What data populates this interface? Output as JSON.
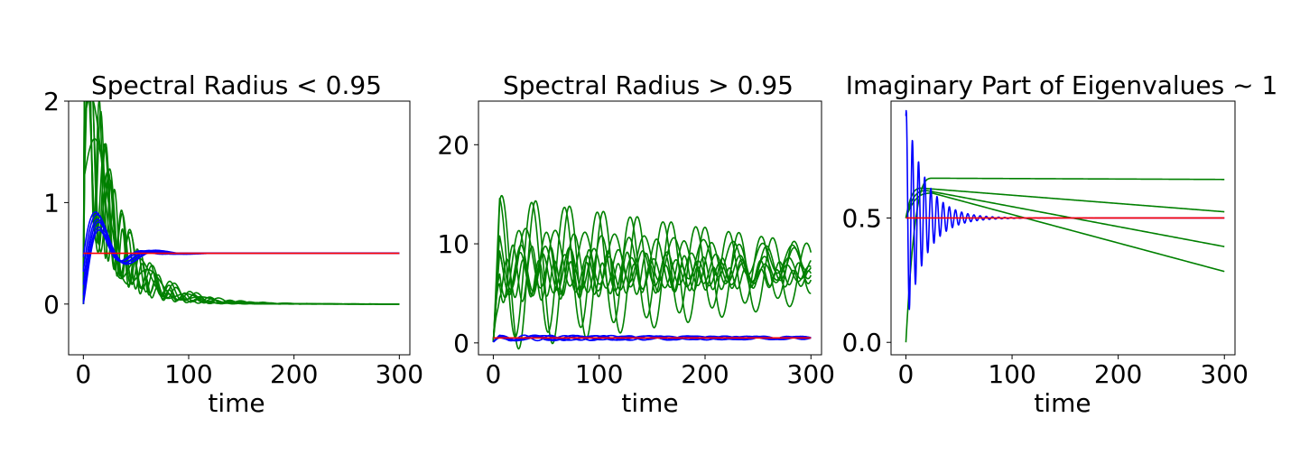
{
  "colors": {
    "transient": "#008000",
    "converging": "#0000ff",
    "reference": "#ff0000"
  },
  "chart_data": [
    {
      "type": "line",
      "title": "Spectral Radius < 0.95",
      "xlabel": "time",
      "ylabel": "",
      "xlim": [
        -14,
        310
      ],
      "ylim": [
        -0.5,
        2.0
      ],
      "xticks": [
        0,
        100,
        200,
        300
      ],
      "yticks": [
        0,
        1,
        2
      ],
      "xtick_labels": [
        "0",
        "100",
        "200",
        "300"
      ],
      "ytick_labels": [
        "0",
        "1",
        "2"
      ],
      "grid": false,
      "x_end": 300,
      "groups": [
        {
          "color": "green",
          "model": "damped_decay",
          "target": 0.0,
          "lines": [
            {
              "amplitude": 2.6,
              "decay": 22,
              "period": 11,
              "phase": 0.6,
              "start": 0
            },
            {
              "amplitude": 2.4,
              "decay": 25,
              "period": 13,
              "phase": 1.2,
              "start": 0
            },
            {
              "amplitude": 2.2,
              "decay": 28,
              "period": 15,
              "phase": 0.3,
              "start": 0
            },
            {
              "amplitude": 2.0,
              "decay": 30,
              "period": 17,
              "phase": 1.8,
              "start": 0
            },
            {
              "amplitude": 1.9,
              "decay": 32,
              "period": 19,
              "phase": 0.9,
              "start": 0
            },
            {
              "amplitude": 1.7,
              "decay": 34,
              "period": 21,
              "phase": 2.2,
              "start": 0
            },
            {
              "amplitude": 1.8,
              "decay": 30,
              "period": 45,
              "phase": 1.5,
              "start": 0
            },
            {
              "amplitude": 1.6,
              "decay": 32,
              "period": 50,
              "phase": 1.1,
              "start": 0
            }
          ]
        },
        {
          "color": "blue",
          "model": "damped_approach",
          "target": 0.5,
          "lines": [
            {
              "amplitude": 0.5,
              "decay": 18,
              "period": 40,
              "phase": 0.0,
              "delay": 0
            },
            {
              "amplitude": 0.5,
              "decay": 18,
              "period": 44,
              "phase": 0.3,
              "delay": 0
            },
            {
              "amplitude": 0.5,
              "decay": 20,
              "period": 48,
              "phase": 0.6,
              "delay": 0
            },
            {
              "amplitude": 0.5,
              "decay": 20,
              "period": 52,
              "phase": 0.9,
              "delay": 0
            },
            {
              "amplitude": 0.5,
              "decay": 22,
              "period": 56,
              "phase": 1.2,
              "delay": 0
            },
            {
              "amplitude": 0.5,
              "decay": 22,
              "period": 60,
              "phase": 1.5,
              "delay": 0
            }
          ]
        },
        {
          "color": "red",
          "model": "constant",
          "lines": [
            {
              "value": 0.5
            }
          ]
        }
      ]
    },
    {
      "type": "line",
      "title": "Spectral Radius > 0.95",
      "xlabel": "time",
      "ylabel": "",
      "xlim": [
        -14,
        310
      ],
      "ylim": [
        -1.2,
        24.4
      ],
      "xticks": [
        0,
        100,
        200,
        300
      ],
      "yticks": [
        0,
        10,
        20
      ],
      "xtick_labels": [
        "0",
        "100",
        "200",
        "300"
      ],
      "ytick_labels": [
        "0",
        "10",
        "20"
      ],
      "grid": false,
      "x_end": 300,
      "groups": [
        {
          "color": "green",
          "model": "persistent_oscillation",
          "lines": [
            {
              "mean": 7.0,
              "amplitude": 16.0,
              "final_amplitude": 6.0,
              "period": 32,
              "phase": 0.0
            },
            {
              "mean": 7.5,
              "amplitude": 14.5,
              "final_amplitude": 5.0,
              "period": 31,
              "phase": 0.5
            },
            {
              "mean": 8.5,
              "amplitude": 6.5,
              "final_amplitude": 2.5,
              "period": 28,
              "phase": 1.0
            },
            {
              "mean": 8.0,
              "amplitude": 7.0,
              "final_amplitude": 3.0,
              "period": 26,
              "phase": 2.0
            },
            {
              "mean": 7.5,
              "amplitude": 5.0,
              "final_amplitude": 2.0,
              "period": 23,
              "phase": 0.7
            },
            {
              "mean": 7.0,
              "amplitude": 6.0,
              "final_amplitude": 2.0,
              "period": 18,
              "phase": 1.4
            },
            {
              "mean": 6.5,
              "amplitude": 4.0,
              "final_amplitude": 1.5,
              "period": 15,
              "phase": 2.4
            },
            {
              "mean": 7.0,
              "amplitude": 4.5,
              "final_amplitude": 1.5,
              "period": 21,
              "phase": 0.2
            }
          ]
        },
        {
          "color": "blue",
          "model": "persistent_oscillation",
          "lines": [
            {
              "mean": 0.5,
              "amplitude": 0.5,
              "final_amplitude": 0.3,
              "period": 30,
              "phase": 0.0
            },
            {
              "mean": 0.5,
              "amplitude": 0.6,
              "final_amplitude": 0.3,
              "period": 36,
              "phase": 1.0
            },
            {
              "mean": 0.5,
              "amplitude": 0.4,
              "final_amplitude": 0.3,
              "period": 42,
              "phase": 2.0
            },
            {
              "mean": 0.5,
              "amplitude": 0.6,
              "final_amplitude": 0.2,
              "period": 25,
              "phase": 0.5
            },
            {
              "mean": 0.5,
              "amplitude": 0.5,
              "final_amplitude": 0.3,
              "period": 48,
              "phase": 1.6
            }
          ]
        },
        {
          "color": "red",
          "model": "constant",
          "lines": [
            {
              "value": 0.5
            }
          ]
        }
      ]
    },
    {
      "type": "line",
      "title": "Imaginary Part of Eigenvalues ~ 1",
      "xlabel": "time",
      "ylabel": "",
      "xlim": [
        -14,
        310
      ],
      "ylim": [
        -0.05,
        0.97
      ],
      "xticks": [
        0,
        100,
        200,
        300
      ],
      "yticks": [
        0.0,
        0.5
      ],
      "xtick_labels": [
        "0",
        "100",
        "200",
        "300"
      ],
      "ytick_labels": [
        "0.0",
        "0.5"
      ],
      "grid": false,
      "x_end": 300,
      "groups": [
        {
          "color": "green",
          "model": "rise_then_linear",
          "lines": [
            {
              "start_value": 0.0,
              "peak": 0.66,
              "peak_time": 25,
              "end_value": 0.655
            },
            {
              "start_value": 0.5,
              "peak": 0.62,
              "peak_time": 15,
              "end_value": 0.525
            },
            {
              "start_value": 0.5,
              "peak": 0.61,
              "peak_time": 20,
              "end_value": 0.385
            },
            {
              "start_value": 0.5,
              "peak": 0.6,
              "peak_time": 25,
              "end_value": 0.285
            }
          ]
        },
        {
          "color": "blue",
          "model": "damped_oscillation",
          "lines": [
            {
              "mean": 0.5,
              "amplitude": 0.44,
              "decay": 18,
              "period": 5.8,
              "phase": 1.2
            }
          ]
        },
        {
          "color": "red",
          "model": "constant",
          "lines": [
            {
              "value": 0.5
            }
          ]
        }
      ]
    }
  ]
}
